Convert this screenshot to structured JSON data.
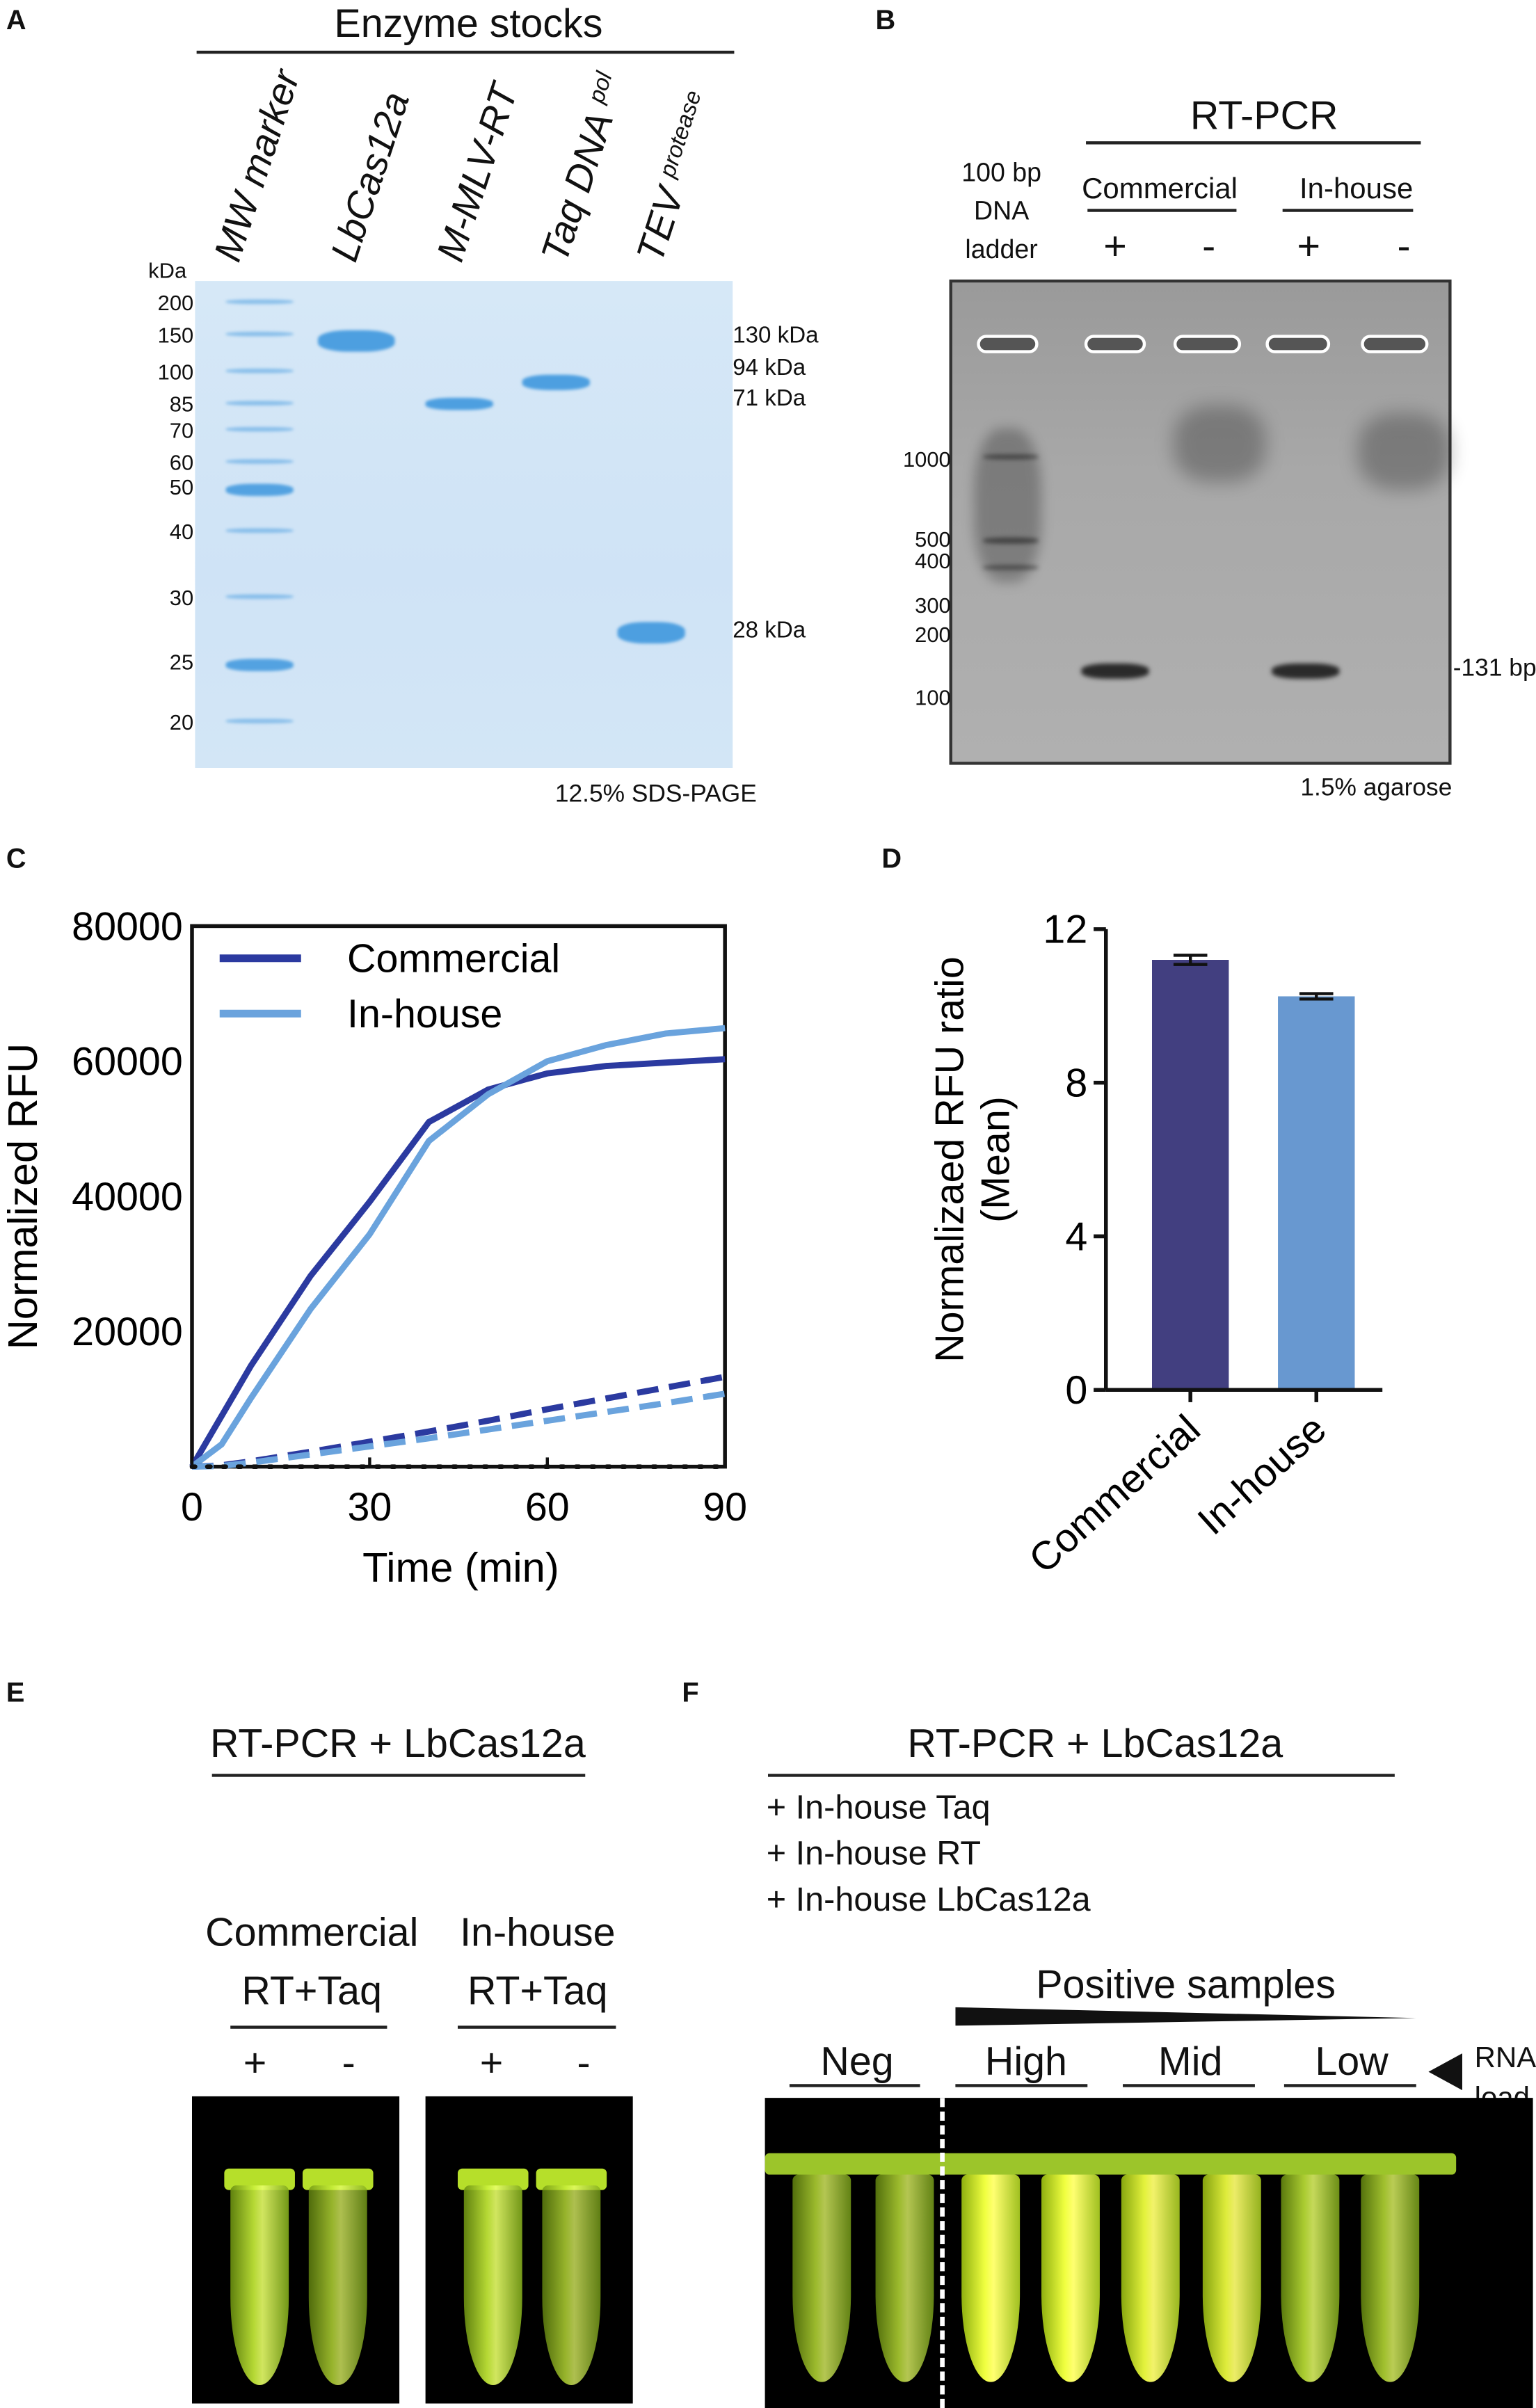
{
  "panel_a": {
    "letter": "A",
    "title": "Enzyme stocks",
    "lanes": [
      "MW marker",
      "LbCas12a",
      "M-MLV-RT",
      "Taq DNA ",
      "TEV "
    ],
    "lane_superscripts": {
      "taq": "pol",
      "tev": "protease"
    },
    "unit": "kDa",
    "ladder": [
      "200",
      "150",
      "100",
      "85",
      "70",
      "60",
      "50",
      "40",
      "30",
      "25",
      "20"
    ],
    "band_labels": [
      "130 kDa",
      "94 kDa",
      "71 kDa",
      "28 kDa"
    ],
    "caption": "12.5% SDS-PAGE",
    "gel_color": "#d3e6f6",
    "band_color": "#4d9fe0"
  },
  "panel_b": {
    "letter": "B",
    "title": "RT-PCR",
    "ladder_label": [
      "100 bp",
      "DNA",
      "ladder"
    ],
    "groups": [
      "Commercial",
      "In-house"
    ],
    "signs": [
      "+",
      "-",
      "+",
      "-"
    ],
    "ladder": [
      "1000",
      "500",
      "400",
      "300",
      "200",
      "100"
    ],
    "band_label": "131 bp",
    "caption": "1.5% agarose"
  },
  "panel_c": {
    "letter": "C"
  },
  "panel_d": {
    "letter": "D"
  },
  "panel_e": {
    "letter": "E",
    "title": "RT-PCR + LbCas12a",
    "groups": [
      [
        "Commercial",
        "RT+Taq"
      ],
      [
        "In-house",
        "RT+Taq"
      ]
    ],
    "signs": [
      "+",
      "-",
      "+",
      "-"
    ]
  },
  "panel_f": {
    "letter": "F",
    "title": "RT-PCR + LbCas12a",
    "conditions": [
      "+ In-house Taq",
      "+ In-house RT",
      "+ In-house LbCas12a"
    ],
    "positive_label": "Positive samples",
    "groups": [
      "Neg",
      "High",
      "Mid",
      "Low"
    ],
    "rna_label": [
      "RNA",
      "load"
    ],
    "fluorescence_color": "#d8f53a"
  },
  "chart_data": [
    {
      "type": "line",
      "xlabel": "Time (min)",
      "ylabel": "Normalized RFU",
      "xlim": [
        0,
        90
      ],
      "ylim": [
        0,
        80000
      ],
      "xticks": [
        "0",
        "30",
        "60",
        "90"
      ],
      "yticks": [
        "20000",
        "40000",
        "60000",
        "80000"
      ],
      "legend_position": "top-left",
      "x": [
        0,
        5,
        10,
        20,
        30,
        40,
        50,
        60,
        70,
        80,
        90
      ],
      "series": [
        {
          "name": "Commercial",
          "style": "solid",
          "color": "#2b3aa0",
          "values": [
            0,
            7500,
            15000,
            28200,
            39200,
            51000,
            55800,
            58200,
            59300,
            59800,
            60300
          ]
        },
        {
          "name": "In-house",
          "style": "solid",
          "color": "#6aa3dd",
          "values": [
            0,
            3300,
            10200,
            23300,
            34400,
            48200,
            55100,
            60000,
            62400,
            64100,
            64900
          ]
        },
        {
          "style": "dashed",
          "color": "#2b3aa0",
          "values": [
            0,
            200,
            800,
            2200,
            3700,
            5200,
            6800,
            8500,
            10100,
            11700,
            13300
          ]
        },
        {
          "style": "dashed",
          "color": "#6aa3dd",
          "values": [
            0,
            100,
            600,
            1800,
            3000,
            4200,
            5500,
            6800,
            8100,
            9400,
            10800
          ]
        },
        {
          "style": "dotted",
          "color": "#111111",
          "values": [
            0,
            0,
            0,
            0,
            0,
            0,
            0,
            0,
            0,
            0,
            0
          ]
        }
      ]
    },
    {
      "type": "bar",
      "ylabel": [
        "Normalizaed RFU ratio",
        "(Mean)"
      ],
      "categories": [
        "Commercial",
        "In-house"
      ],
      "values": [
        11.2,
        10.25
      ],
      "errors": [
        0.12,
        0.07
      ],
      "colors": [
        "#423f80",
        "#6898d0"
      ],
      "ylim": [
        0,
        12
      ],
      "yticks": [
        "0",
        "4",
        "8",
        "12"
      ]
    }
  ]
}
